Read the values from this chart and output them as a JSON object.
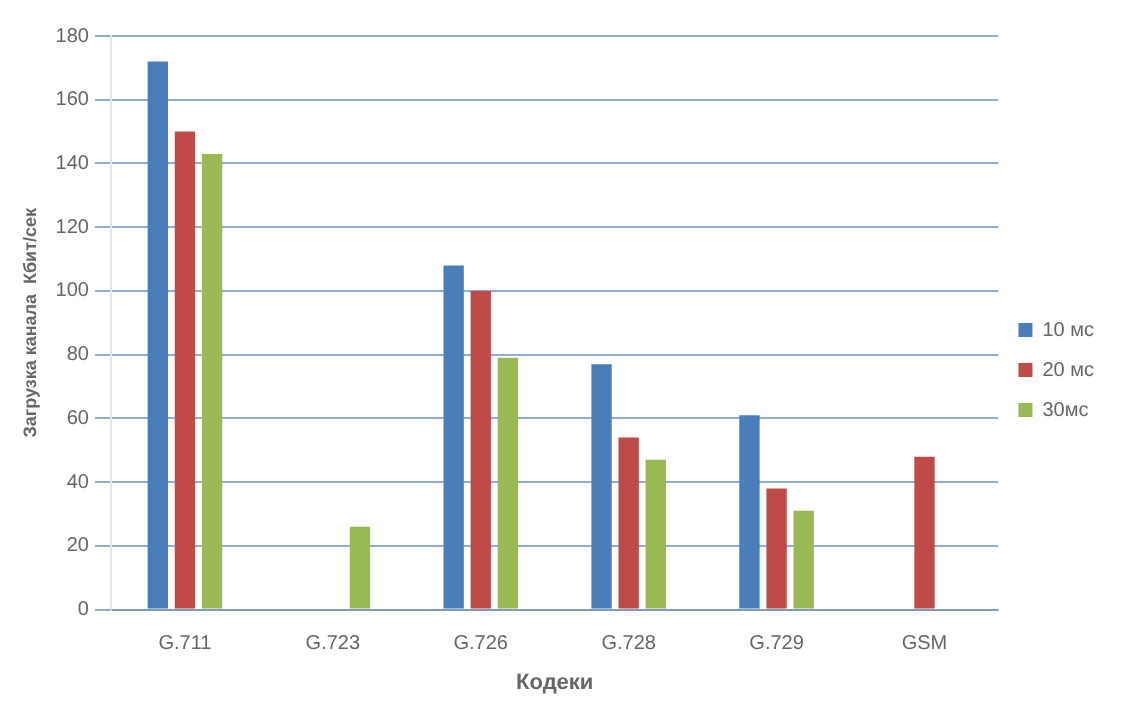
{
  "chart_data": {
    "type": "bar",
    "xlabel": "Кодеки",
    "ylabel": "Загрузка канала  Кбит/сек",
    "categories": [
      "G.711",
      "G.723",
      "G.726",
      "G.728",
      "G.729",
      "GSM"
    ],
    "series": [
      {
        "name": "10 мс",
        "color": "#4a7ebb",
        "values": [
          172,
          null,
          108,
          77,
          61,
          null
        ]
      },
      {
        "name": "20 мс",
        "color": "#be4b48",
        "values": [
          150,
          null,
          100,
          54,
          38,
          48
        ]
      },
      {
        "name": "30мс",
        "color": "#98b954",
        "values": [
          143,
          26,
          79,
          47,
          31,
          null
        ]
      }
    ],
    "ylim": [
      0,
      180
    ],
    "yticks": [
      0,
      20,
      40,
      60,
      80,
      100,
      120,
      140,
      160,
      180
    ],
    "grid": "y",
    "legend": "right"
  }
}
